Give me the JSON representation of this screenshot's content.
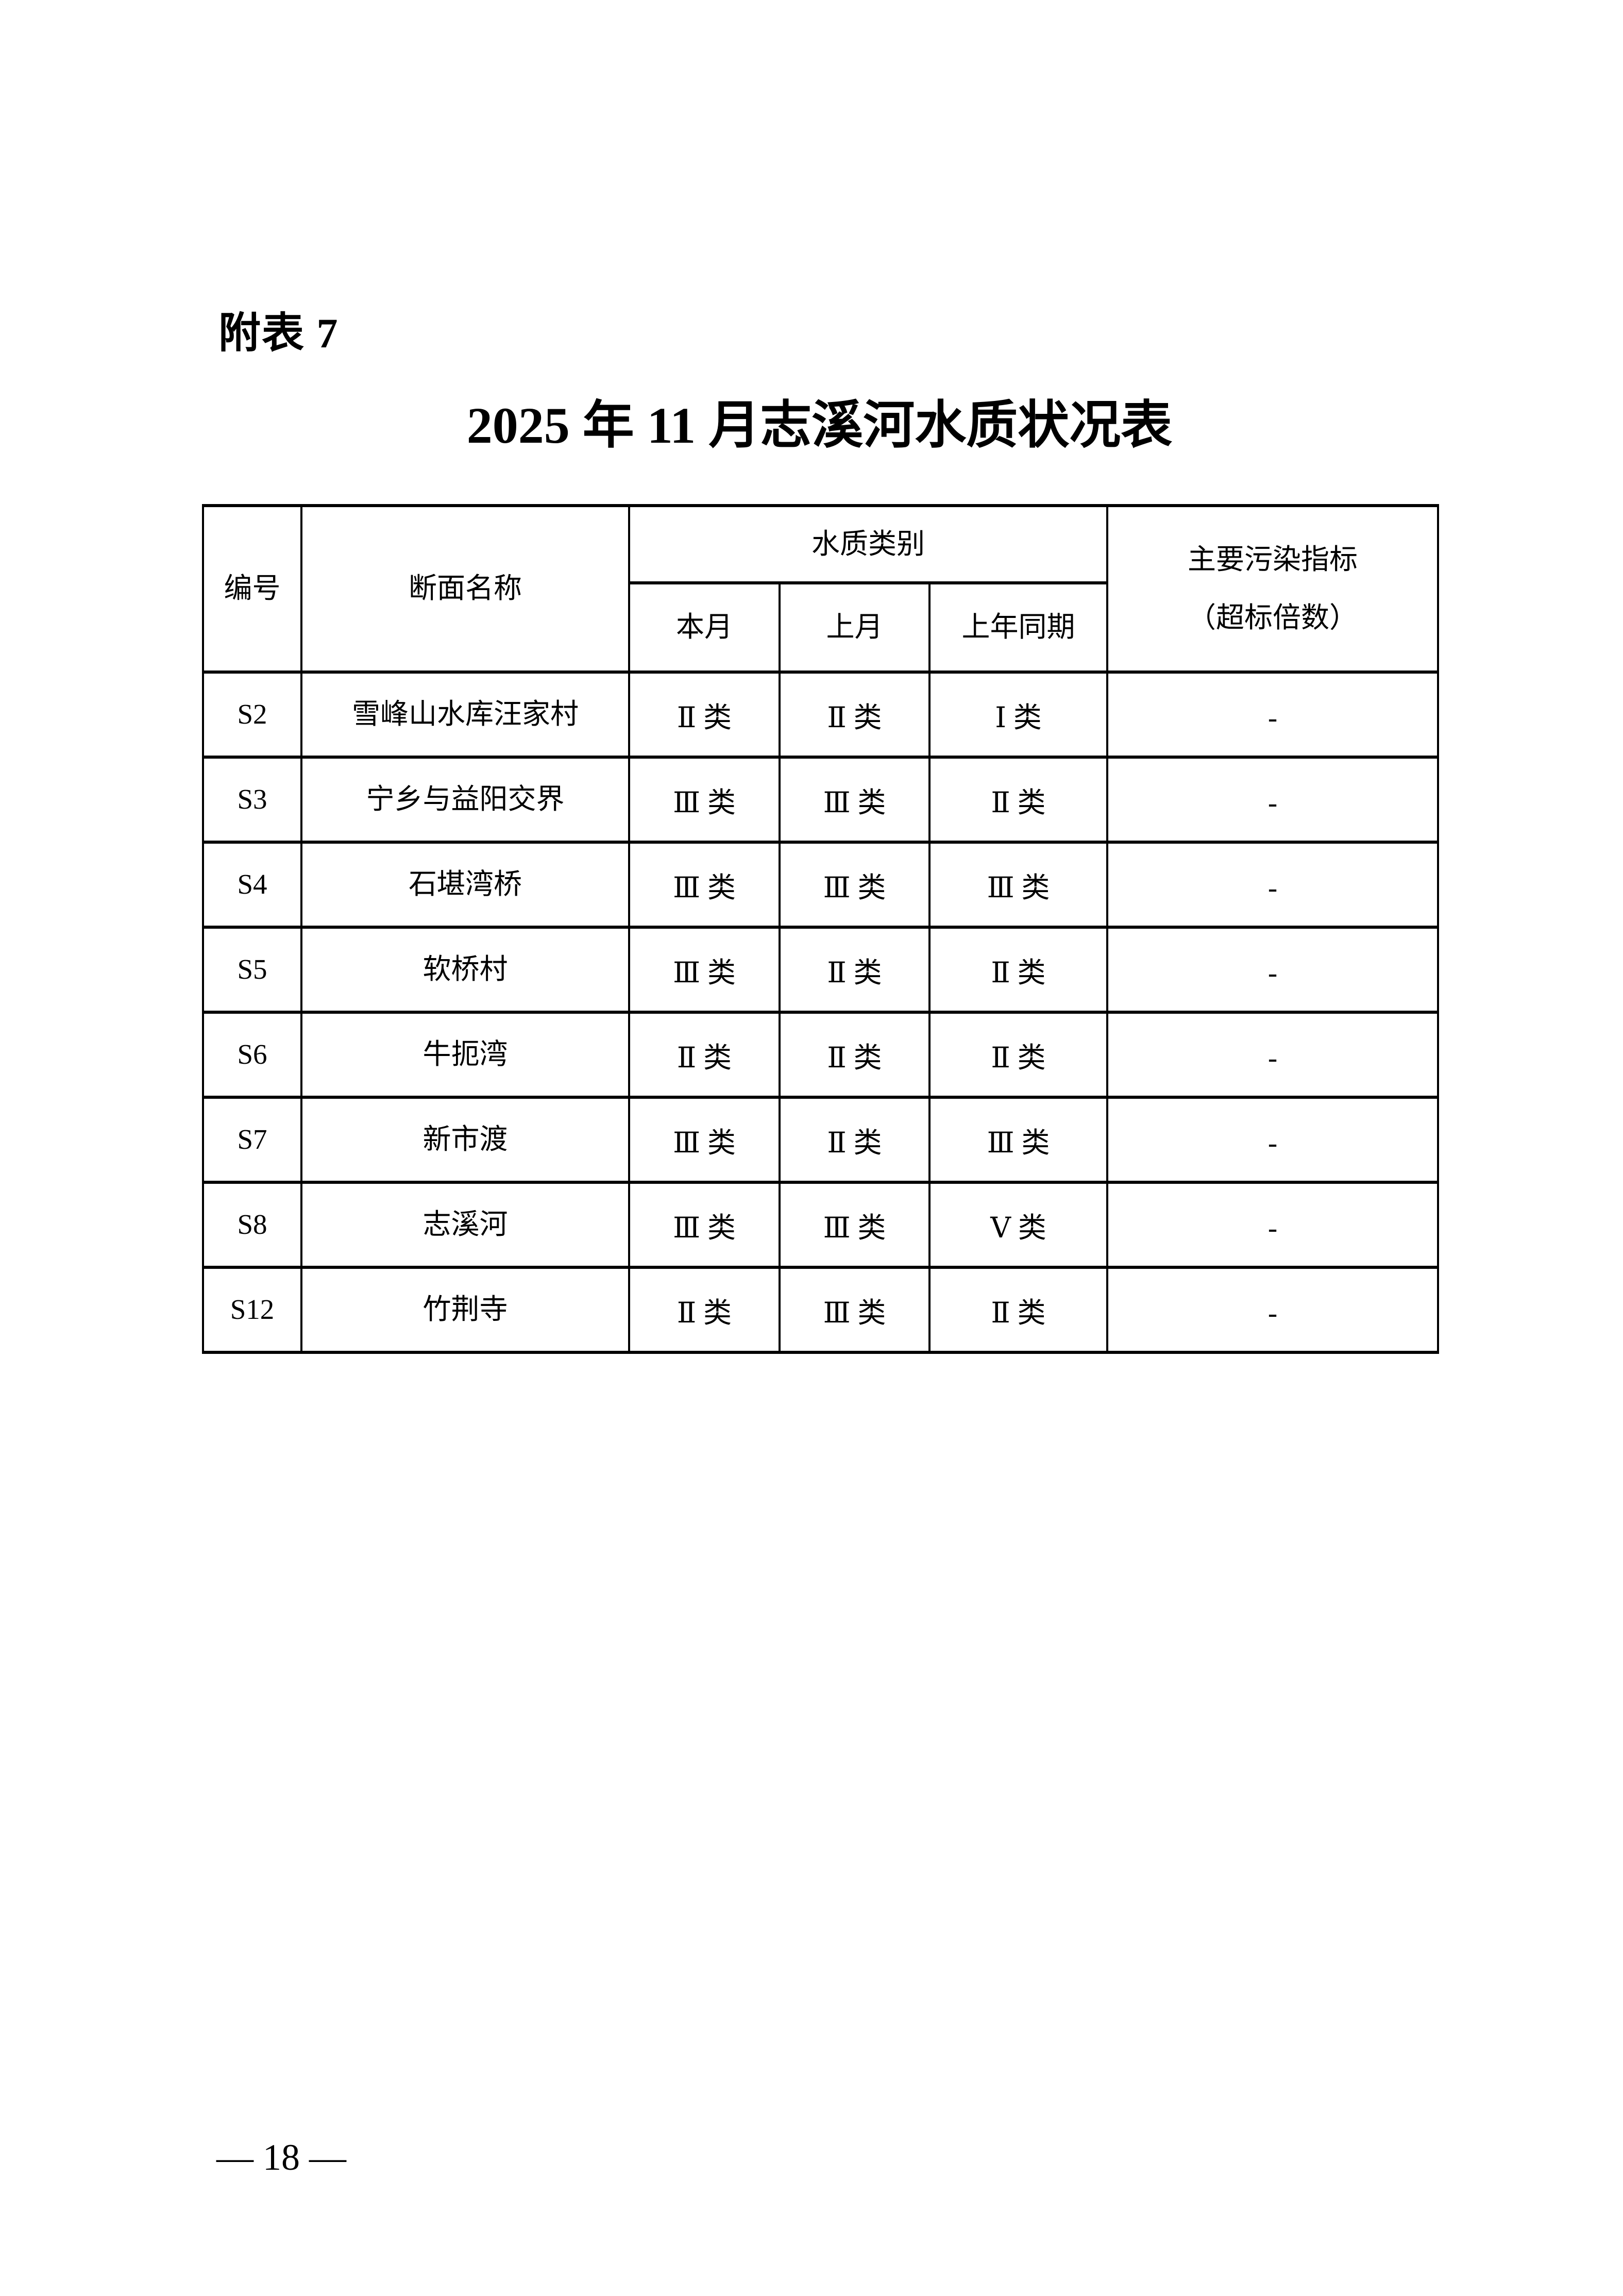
{
  "page": {
    "annex_label": "附表 7",
    "title": "2025 年 11 月志溪河水质状况表",
    "footer_page_number": "— 18 —"
  },
  "table": {
    "header": {
      "col_id": "编号",
      "col_section_name": "断面名称",
      "group_water_quality_class": "水质类别",
      "sub_this_month": "本月",
      "sub_last_month": "上月",
      "sub_same_period_last_year": "上年同期",
      "col_main_pollutants_line1": "主要污染指标",
      "col_main_pollutants_line2": "（超标倍数）"
    },
    "rows": [
      {
        "id": "S2",
        "section": "雪峰山水库汪家村",
        "this_month": "Ⅱ 类",
        "last_month": "Ⅱ 类",
        "same_period_last_year": "Ⅰ 类",
        "main_pollutants": "-"
      },
      {
        "id": "S3",
        "section": "宁乡与益阳交界",
        "this_month": "Ⅲ 类",
        "last_month": "Ⅲ 类",
        "same_period_last_year": "Ⅱ 类",
        "main_pollutants": "-"
      },
      {
        "id": "S4",
        "section": "石堪湾桥",
        "this_month": "Ⅲ 类",
        "last_month": "Ⅲ 类",
        "same_period_last_year": "Ⅲ 类",
        "main_pollutants": "-"
      },
      {
        "id": "S5",
        "section": "软桥村",
        "this_month": "Ⅲ 类",
        "last_month": "Ⅱ 类",
        "same_period_last_year": "Ⅱ 类",
        "main_pollutants": "-"
      },
      {
        "id": "S6",
        "section": "牛扼湾",
        "this_month": "Ⅱ 类",
        "last_month": "Ⅱ 类",
        "same_period_last_year": "Ⅱ 类",
        "main_pollutants": "-"
      },
      {
        "id": "S7",
        "section": "新市渡",
        "this_month": "Ⅲ 类",
        "last_month": "Ⅱ 类",
        "same_period_last_year": "Ⅲ 类",
        "main_pollutants": "-"
      },
      {
        "id": "S8",
        "section": "志溪河",
        "this_month": "Ⅲ 类",
        "last_month": "Ⅲ 类",
        "same_period_last_year": "Ⅴ 类",
        "main_pollutants": "-"
      },
      {
        "id": "S12",
        "section": "竹荆寺",
        "this_month": "Ⅱ 类",
        "last_month": "Ⅲ 类",
        "same_period_last_year": "Ⅱ 类",
        "main_pollutants": "-"
      }
    ]
  }
}
